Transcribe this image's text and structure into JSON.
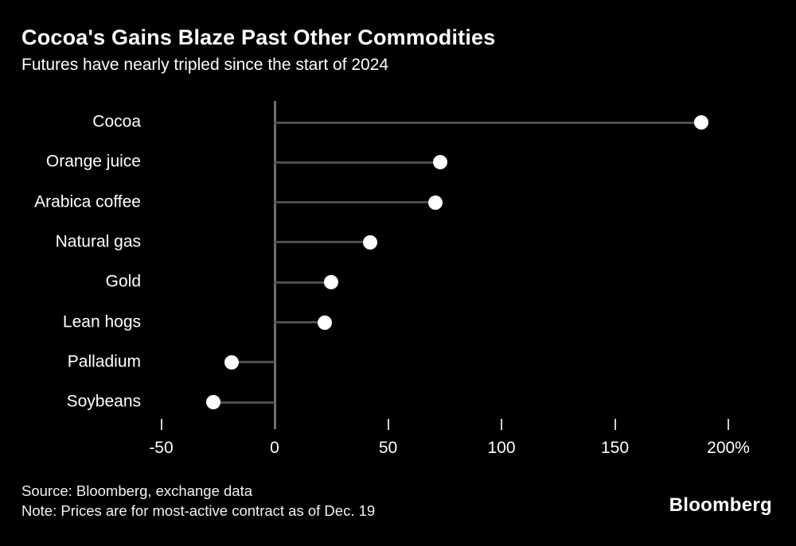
{
  "header": {
    "title": "Cocoa's Gains Blaze Past Other Commodities",
    "subtitle": "Futures have nearly tripled since the start of 2024"
  },
  "chart_data": {
    "type": "lollipop-horizontal",
    "title": "Cocoa's Gains Blaze Past Other Commodities",
    "subtitle": "Futures have nearly tripled since the start of 2024",
    "categories": [
      "Cocoa",
      "Orange juice",
      "Arabica coffee",
      "Natural gas",
      "Gold",
      "Lean hogs",
      "Palladium",
      "Soybeans"
    ],
    "values": [
      188,
      73,
      71,
      42,
      25,
      22,
      -19,
      -27
    ],
    "unit": "%",
    "xlim": [
      -50,
      200
    ],
    "x_ticks": [
      -50,
      0,
      50,
      100,
      150,
      200
    ],
    "x_tick_labels": [
      "-50",
      "0",
      "50",
      "100",
      "150",
      "200%"
    ],
    "legend": "none",
    "grid": "off",
    "colors": {
      "background": "#000000",
      "dot": "#ffffff",
      "stem": "#4d4d4d",
      "zero_axis": "#6f6f6f",
      "text": "#ffffff"
    }
  },
  "footer": {
    "source": "Source: Bloomberg, exchange data",
    "note": "Note: Prices are for most-active contract as of Dec. 19",
    "logo": "Bloomberg"
  }
}
